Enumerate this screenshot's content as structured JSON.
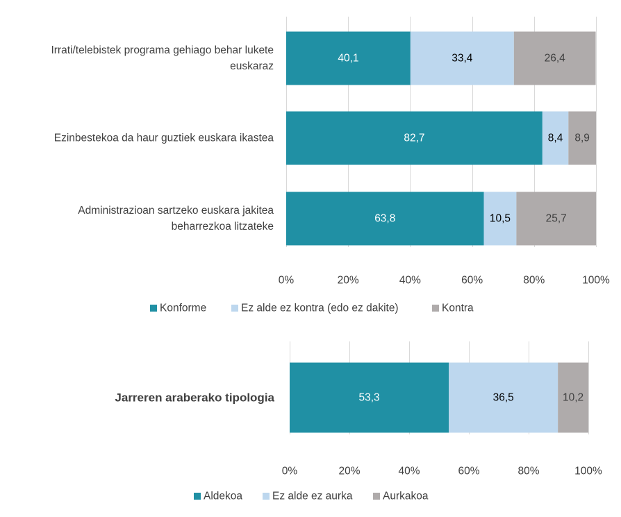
{
  "chart_data": [
    {
      "type": "bar",
      "orientation": "horizontal",
      "stacked": "percent",
      "categories": [
        [
          "Irrati/telebistek programa gehiago behar lukete",
          "euskaraz"
        ],
        [
          "Ezinbestekoa da haur guztiek euskara ikastea"
        ],
        [
          "Administrazioan sartzeko euskara jakitea",
          "beharrezkoa litzateke"
        ]
      ],
      "series": [
        {
          "name": "Konforme",
          "color": "#2090A4",
          "label_color": "#ffffff",
          "values": [
            40.1,
            82.7,
            63.8
          ],
          "labels": [
            "40,1",
            "82,7",
            "63,8"
          ]
        },
        {
          "name": "Ez alde ez kontra (edo ez dakite)",
          "color": "#BDD7EE",
          "label_color": "#000000",
          "values": [
            33.4,
            8.4,
            10.5
          ],
          "labels": [
            "33,4",
            "8,4",
            "10,5"
          ]
        },
        {
          "name": "Kontra",
          "color": "#AFABAB",
          "label_color": "#404040",
          "values": [
            26.4,
            8.9,
            25.7
          ],
          "labels": [
            "26,4",
            "8,9",
            "25,7"
          ]
        }
      ],
      "xticks": [
        "0%",
        "20%",
        "40%",
        "60%",
        "80%",
        "100%"
      ],
      "xlim": [
        0,
        100
      ],
      "legend": "bottom",
      "grid": true
    },
    {
      "type": "bar",
      "orientation": "horizontal",
      "stacked": "percent",
      "categories": [
        [
          "Jarreren araberako tipologia"
        ]
      ],
      "bold_categories": true,
      "series": [
        {
          "name": "Aldekoa",
          "color": "#2090A4",
          "label_color": "#ffffff",
          "values": [
            53.3
          ],
          "labels": [
            "53,3"
          ]
        },
        {
          "name": "Ez alde ez aurka",
          "color": "#BDD7EE",
          "label_color": "#000000",
          "values": [
            36.5
          ],
          "labels": [
            "36,5"
          ]
        },
        {
          "name": "Aurkakoa",
          "color": "#AFABAB",
          "label_color": "#404040",
          "values": [
            10.2
          ],
          "labels": [
            "10,2"
          ]
        }
      ],
      "xticks": [
        "0%",
        "20%",
        "40%",
        "60%",
        "80%",
        "100%"
      ],
      "xlim": [
        0,
        100
      ],
      "legend": "bottom",
      "grid": true
    }
  ]
}
